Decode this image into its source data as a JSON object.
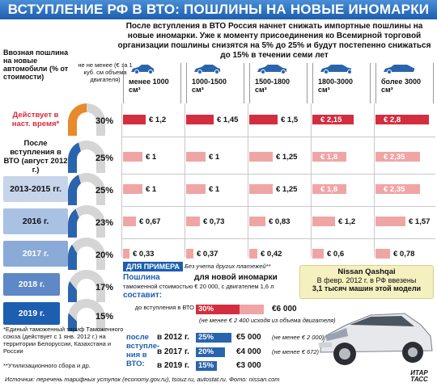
{
  "title": "ВСТУПЛЕНИЕ РФ В ВТО: ПОШЛИНЫ НА НОВЫЕ ИНОМАРКИ",
  "intro": "После вступления в ВТО Россия начнет снижать импортные пошлины на новые иномарки. Уже к моменту присоединения ко Всемирной торговой организации пошлины снизятся на 5% до 25% и будут постепенно снижаться до 15% в течении семи лет",
  "header": {
    "rate_label": "Ввозная пошлина на новые автомобили (% от стоимости)",
    "base_label": "не не менее (€ за 1 куб. см объема двигателя)"
  },
  "columns": [
    {
      "label": "менее 1000 см³"
    },
    {
      "label": "1000-1500 см³"
    },
    {
      "label": "1500-1800 см³"
    },
    {
      "label": "1800-3000 см³"
    },
    {
      "label": "более 3000 см³"
    }
  ],
  "rows": [
    {
      "label": "Действует в наст. время*",
      "pct": 30,
      "pct_label": "30%",
      "values": [
        "€ 1,2",
        "€ 1,45",
        "€ 1,5",
        "€ 2,15",
        "€ 2,8"
      ],
      "nums": [
        1.2,
        1.45,
        1.5,
        2.15,
        2.8
      ]
    },
    {
      "label": "После вступления в ВТО (август 2012 г.)",
      "pct": 25,
      "pct_label": "25%",
      "values": [
        "€ 1",
        "€ 1",
        "€ 1,25",
        "€ 1,8",
        "€ 2,35"
      ],
      "nums": [
        1,
        1,
        1.25,
        1.8,
        2.35
      ]
    },
    {
      "label": "2013-2015 гг.",
      "pct": 25,
      "pct_label": "25%",
      "values": [
        "€ 1",
        "€ 1",
        "€ 1,25",
        "€ 1,8",
        "€ 2,35"
      ],
      "nums": [
        1,
        1,
        1.25,
        1.8,
        2.35
      ]
    },
    {
      "label": "2016 г.",
      "pct": 23,
      "pct_label": "23%",
      "values": [
        "€ 0,67",
        "€ 0,73",
        "€ 0,83",
        "€ 1,2",
        "€ 1,57"
      ],
      "nums": [
        0.67,
        0.73,
        0.83,
        1.2,
        1.57
      ]
    },
    {
      "label": "2017 г.",
      "pct": 20,
      "pct_label": "20%",
      "values": [
        "€ 0,33",
        "€ 0,37",
        "€ 0,42",
        "€ 0,6",
        "€ 0,78"
      ],
      "nums": [
        0.33,
        0.37,
        0.42,
        0.6,
        0.78
      ]
    },
    {
      "label": "2018 г.",
      "pct": 17,
      "pct_label": "17%",
      "values": [],
      "nums": []
    },
    {
      "label": "2019 г.",
      "pct": 15,
      "pct_label": "15%",
      "values": [],
      "nums": []
    }
  ],
  "footnote1": "*Единый таможенный тариф Таможенного союза (действует с 1 янв. 2012 г.) на территории Белоруссии, Казахстана и России",
  "footnote2": "**Утилизационного сбора и др.",
  "example": {
    "header": "ДЛЯ ПРИМЕРА",
    "header_note": "Без учета других платежей**",
    "title_a": "Пошлина",
    "title_b": "для новой иномарки",
    "subtitle": "таможенной стоимостью € 20 000, с двигателем 1,6 л",
    "sost": "составит:",
    "before_label": "до вступления в ВТО",
    "before_pct": "30%",
    "before_val": "€6 000",
    "before_note": "(не менее € 2 400 исходя из объема двигателя)",
    "after_label": "после вступле-ния в ВТО:",
    "after": [
      {
        "year": "в 2012 г.",
        "pct": "25%",
        "val": "€5 000",
        "note": "(не менее € 2 000)"
      },
      {
        "year": "в 2017 г.",
        "pct": "20%",
        "val": "€4 000",
        "note": "(не менее € 672)"
      },
      {
        "year": "в 2019 г.",
        "pct": "15%",
        "val": "€3 000",
        "note": ""
      }
    ]
  },
  "nissan": {
    "name": "Nissan Qashqai",
    "text": "В февр. 2012 г. в РФ ввезены",
    "text2": "3,1 тысяч машин этой модели"
  },
  "source": "Источник: перечень тарифных уступок (economy.gov.ru), tsouz.ru, autostat.ru. Фото: nissan.com",
  "logo": "ИТАР ТАСС"
}
